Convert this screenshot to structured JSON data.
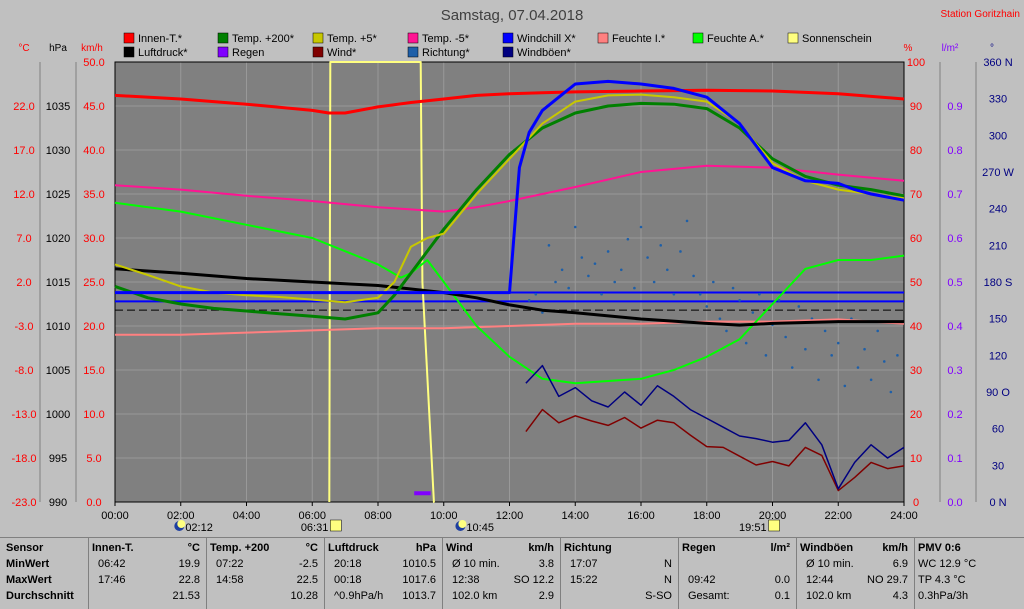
{
  "title": "Samstag, 07.04.2018",
  "station": "Station Goritzhain",
  "colors": {
    "background": "#c0c0c0",
    "plot_bg": "#808080",
    "grid": "#a0a0a0",
    "innen": "#ff0000",
    "luftdruck": "#000000",
    "temp200": "#008000",
    "regen": "#8000ff",
    "temp5": "#c8c800",
    "wind": "#800000",
    "temp_minus5": "#ff1493",
    "richtung": "#1e5fa8",
    "windchill": "#0000ff",
    "windboeen": "#000080",
    "feuchte_i": "#ff8080",
    "feuchte_a": "#00ff00",
    "sonnenschein": "#ffff80",
    "axis_red": "#ff0000",
    "axis_purple": "#8000ff",
    "axis_navy": "#000080"
  },
  "axis_headers": {
    "c": "°C",
    "hpa": "hPa",
    "kmh": "km/h",
    "percent": "%",
    "lm2": "l/m²",
    "deg": "°"
  },
  "axes": {
    "temp_ticks": [
      "22.0",
      "17.0",
      "12.0",
      "7.0",
      "2.0",
      "-3.0",
      "-8.0",
      "-13.0",
      "-18.0",
      "-23.0"
    ],
    "hpa_ticks": [
      "1035",
      "1030",
      "1025",
      "1020",
      "1015",
      "1010",
      "1005",
      "1000",
      "995",
      "990"
    ],
    "kmh_ticks": [
      "50.0",
      "45.0",
      "40.0",
      "35.0",
      "30.0",
      "25.0",
      "20.0",
      "15.0",
      "10.0",
      "5.0",
      "0.0"
    ],
    "pct_ticks": [
      "100",
      "90",
      "80",
      "70",
      "60",
      "50",
      "40",
      "30",
      "20",
      "10",
      "0"
    ],
    "lm2_ticks": [
      "0.9",
      "0.8",
      "0.7",
      "0.6",
      "0.5",
      "0.4",
      "0.3",
      "0.2",
      "0.1",
      "0.0"
    ],
    "deg_ticks": [
      "360 N",
      "330",
      "300",
      "270 W",
      "240",
      "210",
      "180 S",
      "150",
      "120",
      "90 O",
      "60",
      "30",
      "0 N"
    ],
    "x_ticks": [
      "00:00",
      "02:00",
      "04:00",
      "06:00",
      "08:00",
      "10:00",
      "12:00",
      "14:00",
      "16:00",
      "18:00",
      "20:00",
      "22:00",
      "24:00"
    ]
  },
  "legend": [
    {
      "key": "innen",
      "label": "Innen-T.*"
    },
    {
      "key": "temp200",
      "label": "Temp. +200*"
    },
    {
      "key": "temp5",
      "label": "Temp. +5*"
    },
    {
      "key": "temp_minus5",
      "label": "Temp. -5*"
    },
    {
      "key": "windchill",
      "label": "Windchill X*"
    },
    {
      "key": "feuchte_i",
      "label": "Feuchte I.*"
    },
    {
      "key": "feuchte_a",
      "label": "Feuchte A.*"
    },
    {
      "key": "sonnenschein",
      "label": "Sonnenschein"
    },
    {
      "key": "luftdruck",
      "label": "Luftdruck*"
    },
    {
      "key": "regen",
      "label": "Regen"
    },
    {
      "key": "wind",
      "label": "Wind*"
    },
    {
      "key": "richtung",
      "label": "Richtung*"
    },
    {
      "key": "windboeen",
      "label": "Windböen*"
    }
  ],
  "sun_events": {
    "moonrise": "02:12",
    "sunrise": "06:31",
    "moonset": "10:45",
    "sunset": "19:51"
  },
  "chart_data": {
    "type": "line",
    "title": "Samstag, 07.04.2018",
    "x_unit": "hours",
    "xlim": [
      0,
      24
    ],
    "axes": {
      "temp_c": [
        -23,
        27
      ],
      "pressure_hpa": [
        990,
        1040
      ],
      "wind_kmh": [
        0,
        50
      ],
      "humidity_pct": [
        0,
        100
      ],
      "rain_lm2": [
        0,
        1.0
      ],
      "direction_deg": [
        0,
        360
      ]
    },
    "series": [
      {
        "name": "Innen-T.*",
        "key": "innen",
        "axis": "temp_c",
        "x": [
          0,
          2,
          4,
          6,
          6.5,
          7,
          8,
          9,
          10,
          11,
          12,
          13,
          14,
          16,
          18,
          20,
          22,
          24
        ],
        "y": [
          23.2,
          22.8,
          22.2,
          21.5,
          21.2,
          21.2,
          21.9,
          22.4,
          22.8,
          23.2,
          23.4,
          23.5,
          23.6,
          23.7,
          23.8,
          23.7,
          23.4,
          22.8
        ]
      },
      {
        "name": "Luftdruck*",
        "key": "luftdruck",
        "axis": "pressure_hpa",
        "x": [
          0,
          2,
          4,
          6,
          8,
          9,
          10,
          11,
          12,
          13,
          14,
          16,
          18,
          19,
          20,
          22,
          24
        ],
        "y": [
          1016.5,
          1016.0,
          1015.4,
          1015.0,
          1014.6,
          1014.2,
          1013.8,
          1013.2,
          1012.4,
          1011.8,
          1011.5,
          1010.8,
          1010.3,
          1010.1,
          1010.3,
          1010.5,
          1010.5
        ]
      },
      {
        "name": "Temp. +200*",
        "key": "temp200",
        "axis": "temp_c",
        "x": [
          0,
          1,
          2,
          3,
          4,
          5,
          6,
          7,
          8,
          8.5,
          9,
          10,
          11,
          12,
          13,
          14,
          15,
          16,
          17,
          18,
          19,
          20,
          21,
          22,
          23,
          24
        ],
        "y": [
          1.5,
          0.2,
          -0.5,
          -1.0,
          -1.3,
          -1.6,
          -1.9,
          -2.2,
          -1.5,
          0.5,
          3.0,
          8.0,
          12.5,
          16.5,
          19.5,
          21.2,
          22.0,
          22.3,
          22.2,
          21.7,
          19.5,
          16.0,
          14.0,
          13.0,
          12.5,
          11.8
        ]
      },
      {
        "name": "Temp. +5*",
        "key": "temp5",
        "axis": "temp_c",
        "x": [
          0,
          1,
          2,
          3,
          4,
          5,
          6,
          7,
          8,
          8.5,
          9,
          9.5,
          10,
          11,
          12,
          13,
          14,
          15,
          16,
          17,
          18,
          19,
          20,
          21,
          22,
          23,
          24
        ],
        "y": [
          4.0,
          2.8,
          1.5,
          0.8,
          0.5,
          0.3,
          0.0,
          -0.3,
          0.2,
          2.0,
          6.0,
          7.0,
          7.5,
          12.0,
          16.0,
          20.0,
          22.5,
          23.2,
          23.3,
          23.0,
          22.5,
          20.0,
          15.5,
          13.5,
          12.5,
          12.0,
          11.5
        ]
      },
      {
        "name": "Temp. -5*",
        "key": "temp_minus5",
        "axis": "temp_c",
        "x": [
          0,
          2,
          4,
          6,
          8,
          10,
          11,
          12,
          14,
          16,
          18,
          20,
          22,
          24
        ],
        "y": [
          13.0,
          12.5,
          11.8,
          11.2,
          10.5,
          10.0,
          10.5,
          11.2,
          12.8,
          14.5,
          15.2,
          15.0,
          14.2,
          13.5
        ]
      },
      {
        "name": "Windchill X*",
        "key": "windchill",
        "axis": "temp_c",
        "x": [
          0,
          6,
          12,
          12.3,
          12.6,
          13,
          13.5,
          14,
          15,
          16,
          17,
          18,
          19,
          20,
          21,
          22,
          22.5,
          23,
          24
        ],
        "y": [
          0.8,
          0.8,
          0.8,
          15.0,
          19.0,
          21.5,
          23.0,
          24.5,
          24.8,
          24.5,
          24.0,
          23.0,
          20.0,
          15.0,
          13.5,
          13.2,
          12.5,
          12.0,
          11.3
        ]
      },
      {
        "name": "Feuchte I.*",
        "key": "feuchte_i",
        "axis": "humidity_pct",
        "x": [
          0,
          2,
          4,
          6,
          8,
          10,
          12,
          14,
          16,
          18,
          20,
          22,
          24
        ],
        "y": [
          38,
          38,
          38.5,
          39,
          39.5,
          39.5,
          40,
          40.5,
          40.5,
          41,
          41,
          41.5,
          40.5
        ]
      },
      {
        "name": "Feuchte A.*",
        "key": "feuchte_a",
        "axis": "humidity_pct",
        "x": [
          0,
          2,
          4,
          6,
          7,
          8,
          8.7,
          9,
          9.5,
          10,
          11,
          12,
          13,
          14,
          16,
          17,
          18,
          19,
          20,
          21,
          22,
          23,
          24
        ],
        "y": [
          68,
          66,
          63,
          60,
          57,
          54,
          51,
          52,
          55,
          50,
          40,
          33,
          28,
          27,
          28,
          30,
          33,
          37,
          45,
          53,
          55,
          55,
          56
        ]
      },
      {
        "name": "Wind*",
        "key": "wind",
        "axis": "wind_kmh",
        "x": [
          12.5,
          13,
          13.5,
          14,
          14.5,
          15,
          15.5,
          16,
          16.5,
          17,
          17.5,
          18,
          18.5,
          19,
          19.5,
          20,
          20.5,
          21,
          21.5,
          22,
          22.5,
          23,
          23.5,
          24
        ],
        "y": [
          8.0,
          10.5,
          9.0,
          9.8,
          9.2,
          8.7,
          9.6,
          8.4,
          9.3,
          9.0,
          7.6,
          6.3,
          6.2,
          5.2,
          4.2,
          4.6,
          4.1,
          6.2,
          5.3,
          1.3,
          2.8,
          4.5,
          3.8,
          4.1
        ]
      },
      {
        "name": "Windböen*",
        "key": "windboeen",
        "axis": "wind_kmh",
        "x": [
          12.5,
          13,
          13.5,
          14,
          14.5,
          15,
          15.5,
          16,
          16.5,
          17,
          17.5,
          18,
          18.5,
          19,
          19.5,
          20,
          20.5,
          21,
          21.5,
          22,
          22.5,
          23,
          23.5,
          24
        ],
        "y": [
          13.5,
          15.5,
          12.0,
          13.0,
          11.5,
          10.8,
          12.5,
          11.0,
          13.2,
          12.0,
          10.5,
          9.5,
          8.5,
          7.5,
          7.2,
          6.8,
          7.0,
          9.0,
          6.5,
          1.5,
          4.5,
          6.5,
          5.0,
          6.2
        ]
      },
      {
        "name": "Sonnenschein",
        "key": "sonnenschein",
        "axis": "humidity_pct",
        "x": [
          6.52,
          6.55,
          8.5,
          9.3,
          9.35,
          9.7,
          9.72
        ],
        "y": [
          0,
          100,
          100,
          100,
          50,
          0,
          0
        ]
      },
      {
        "name": "Regen",
        "key": "regen",
        "axis": "rain_lm2",
        "x": [
          9.1,
          9.2,
          9.3,
          9.6
        ],
        "y": [
          0.02,
          0.02,
          0.02,
          0.02
        ]
      }
    ],
    "direction_points": {
      "name": "Richtung*",
      "axis": "direction_deg",
      "x": [
        12.6,
        12.8,
        13.0,
        13.2,
        13.4,
        13.6,
        13.8,
        14.0,
        14.2,
        14.4,
        14.6,
        14.8,
        15.0,
        15.2,
        15.4,
        15.6,
        15.8,
        16.0,
        16.2,
        16.4,
        16.6,
        16.8,
        17.0,
        17.2,
        17.4,
        17.6,
        17.8,
        18.0,
        18.2,
        18.4,
        18.6,
        18.8,
        19.0,
        19.2,
        19.4,
        19.6,
        19.8,
        20.0,
        20.2,
        20.4,
        20.6,
        20.8,
        21.0,
        21.2,
        21.4,
        21.6,
        21.8,
        22.0,
        22.2,
        22.4,
        22.6,
        22.8,
        23.0,
        23.2,
        23.4,
        23.6,
        23.8
      ],
      "y": [
        165,
        170,
        155,
        210,
        180,
        190,
        175,
        225,
        200,
        185,
        195,
        170,
        205,
        180,
        190,
        215,
        175,
        225,
        200,
        180,
        210,
        190,
        170,
        205,
        230,
        185,
        170,
        160,
        180,
        150,
        140,
        175,
        165,
        130,
        155,
        170,
        120,
        145,
        165,
        135,
        110,
        160,
        125,
        150,
        100,
        140,
        120,
        130,
        95,
        150,
        110,
        125,
        100,
        140,
        115,
        90,
        120
      ]
    },
    "reference_lines": [
      {
        "name": "Luftdruck ref",
        "axis": "pressure_hpa",
        "value": 1011.8,
        "style": "dashed"
      },
      {
        "name": "Windchill 0",
        "axis": "temp_c",
        "value": 0.8,
        "style": "solid"
      },
      {
        "name": "blue flat",
        "axis": "temp_c",
        "value": -0.2,
        "style": "solid"
      }
    ]
  },
  "stats": {
    "columns": [
      {
        "id": "sensor",
        "header": "Sensor",
        "unit": "",
        "rows": [
          {
            "label": "MinWert"
          },
          {
            "label": "MaxWert"
          },
          {
            "label": "Durchschnitt"
          }
        ]
      },
      {
        "id": "innen",
        "header": "Innen-T.",
        "unit": "°C",
        "rows": [
          {
            "time": "06:42",
            "value": "19.9"
          },
          {
            "time": "17:46",
            "value": "22.8"
          },
          {
            "time": "",
            "value": "21.53"
          }
        ]
      },
      {
        "id": "temp200",
        "header": "Temp. +200",
        "unit": "°C",
        "rows": [
          {
            "time": "07:22",
            "value": "-2.5"
          },
          {
            "time": "14:58",
            "value": "22.5"
          },
          {
            "time": "",
            "value": "10.28"
          }
        ]
      },
      {
        "id": "luftdruck",
        "header": "Luftdruck",
        "unit": "hPa",
        "rows": [
          {
            "time": "20:18",
            "value": "1010.5"
          },
          {
            "time": "00:18",
            "value": "1017.6"
          },
          {
            "time": "^0.9hPa/h",
            "value": "1013.7"
          }
        ]
      },
      {
        "id": "wind",
        "header": "Wind",
        "unit": "km/h",
        "rows": [
          {
            "time": "Ø 10 min.",
            "value": "3.8"
          },
          {
            "time": "12:38",
            "value": "SO 12.2"
          },
          {
            "time": "102.0 km",
            "value": "2.9"
          }
        ]
      },
      {
        "id": "richtung",
        "header": "Richtung",
        "unit": "",
        "rows": [
          {
            "time": "17:07",
            "value": "N"
          },
          {
            "time": "15:22",
            "value": "N"
          },
          {
            "time": "",
            "value": "S-SO"
          }
        ]
      },
      {
        "id": "regen",
        "header": "Regen",
        "unit": "l/m²",
        "rows": [
          {
            "time": "",
            "value": ""
          },
          {
            "time": "09:42",
            "value": "0.0"
          },
          {
            "time": "Gesamt:",
            "value": "0.1"
          }
        ]
      },
      {
        "id": "windboeen",
        "header": "Windböen",
        "unit": "km/h",
        "rows": [
          {
            "time": "Ø 10 min.",
            "value": "6.9"
          },
          {
            "time": "12:44",
            "value": "NO 29.7"
          },
          {
            "time": "102.0 km",
            "value": "4.3"
          }
        ]
      },
      {
        "id": "pmv",
        "header": "PMV 0:6",
        "unit": "",
        "rows": [
          {
            "time": "WC 12.9 °C",
            "value": ""
          },
          {
            "time": "TP 4.3 °C",
            "value": ""
          },
          {
            "time": "0.3hPa/3h",
            "value": ""
          }
        ]
      }
    ]
  }
}
